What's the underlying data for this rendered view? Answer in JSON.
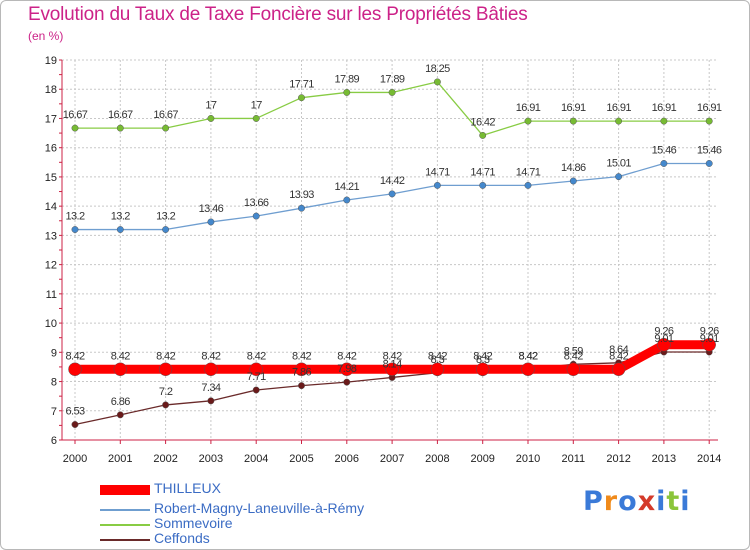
{
  "header": {
    "title": "Evolution du Taux de Taxe Foncière sur les Propriétés Bâties",
    "unit": "(en %)"
  },
  "chart_data": {
    "type": "line",
    "title": "Evolution du Taux de Taxe Foncière sur les Propriétés Bâties",
    "ylabel": "(en %)",
    "xlabel": "",
    "ylim": [
      6,
      19
    ],
    "yticks": [
      "6",
      "7",
      "8",
      "9",
      "10",
      "11",
      "12",
      "13",
      "14",
      "15",
      "16",
      "17",
      "18",
      "19"
    ],
    "x": [
      "2000",
      "2001",
      "2002",
      "2003",
      "2004",
      "2005",
      "2006",
      "2007",
      "2008",
      "2009",
      "2010",
      "2011",
      "2012",
      "2013",
      "2014"
    ],
    "series": [
      {
        "name": "Sommevoire",
        "color": "#88cc44",
        "marker": "#77bb33",
        "values": [
          16.67,
          16.67,
          16.67,
          17,
          17,
          17.71,
          17.89,
          17.89,
          18.25,
          16.42,
          16.91,
          16.91,
          16.91,
          16.91,
          16.91
        ],
        "labels": [
          "16.67",
          "16.67",
          "16.67",
          "17",
          "17",
          "17.71",
          "17.89",
          "17.89",
          "18.25",
          "16.42",
          "16.91",
          "16.91",
          "16.91",
          "16.91",
          "16.91"
        ]
      },
      {
        "name": "Robert-Magny-Laneuville-à-Rémy",
        "color": "#6f9ed0",
        "marker": "#4488cc",
        "values": [
          13.2,
          13.2,
          13.2,
          13.46,
          13.66,
          13.93,
          14.21,
          14.42,
          14.71,
          14.71,
          14.71,
          14.86,
          15.01,
          15.46,
          15.46
        ],
        "labels": [
          "13.2",
          "13.2",
          "13.2",
          "13.46",
          "13.66",
          "13.93",
          "14.21",
          "14.42",
          "14.71",
          "14.71",
          "14.71",
          "14.86",
          "15.01",
          "15.46",
          "15.46"
        ]
      },
      {
        "name": "Ceffonds",
        "color": "#6a2a2a",
        "marker": "#6a1a1a",
        "values": [
          6.53,
          6.86,
          7.2,
          7.34,
          7.71,
          7.86,
          7.98,
          8.14,
          8.3,
          8.3,
          8.42,
          8.59,
          8.64,
          9.01,
          9.01
        ],
        "labels": [
          "6.53",
          "6.86",
          "7.2",
          "7.34",
          "7.71",
          "7.86",
          "7.98",
          "8.14",
          "8.3",
          "8.3",
          "8.42",
          "8.59",
          "8.64",
          "9.01",
          "9.01"
        ]
      },
      {
        "name": "THILLEUX",
        "color": "#ff0000",
        "marker": "#ff0000",
        "values": [
          8.42,
          8.42,
          8.42,
          8.42,
          8.42,
          8.42,
          8.42,
          8.42,
          8.42,
          8.42,
          8.42,
          8.42,
          8.42,
          9.26,
          9.26
        ],
        "labels": [
          "8.42",
          "8.42",
          "8.42",
          "8.42",
          "8.42",
          "8.42",
          "8.42",
          "8.42",
          "8.42",
          "8.42",
          "8.42",
          "8.42",
          "8.42",
          "9.26",
          "9.26"
        ]
      }
    ],
    "legend": [
      "THILLEUX",
      "Robert-Magny-Laneuville-à-Rémy",
      "Sommevoire",
      "Ceffonds"
    ],
    "legend_position": "bottom-left"
  },
  "logo": {
    "text": "Proxiti"
  }
}
